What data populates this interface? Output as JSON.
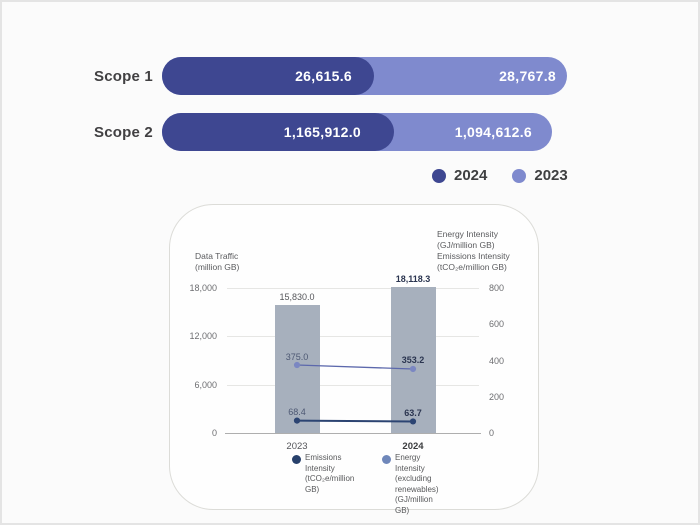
{
  "scope_chart": {
    "rows": [
      {
        "label": "Scope 1",
        "value_2024": "26,615.6",
        "value_2023": "28,767.8"
      },
      {
        "label": "Scope 2",
        "value_2024": "1,165,912.0",
        "value_2023": "1,094,612.6"
      }
    ],
    "legend": [
      {
        "label": "2024",
        "color": "#3e4791"
      },
      {
        "label": "2023",
        "color": "#7f8ace"
      }
    ],
    "colors": {
      "year_2024": "#3e4791",
      "year_2023": "#7f8ace"
    }
  },
  "chart_data": {
    "type": "bar",
    "subtype": "bar+line combo, dual axis",
    "categories": [
      "2023",
      "2024"
    ],
    "series": [
      {
        "name": "Data Traffic",
        "type": "bar",
        "axis": "left",
        "values": [
          15830.0,
          18118.3
        ],
        "labels": [
          "15,830.0",
          "18,118.3"
        ],
        "color": "#a7b0bd"
      },
      {
        "name": "Energy Intensity (excluding renewables) (GJ/million GB)",
        "type": "line",
        "axis": "right",
        "values": [
          375.0,
          353.2
        ],
        "labels": [
          "375.0",
          "353.2"
        ],
        "color": "#5c68ac",
        "dot_color": "#7b87c2"
      },
      {
        "name": "Emissions Intensity (tCO₂e/million GB)",
        "type": "line",
        "axis": "right",
        "values": [
          68.4,
          63.7
        ],
        "labels": [
          "68.4",
          "63.7"
        ],
        "color": "#2c4472",
        "dot_color": "#2c4472"
      }
    ],
    "left_axis": {
      "title": "Data Traffic\n(million GB)",
      "max": 18000,
      "min": 0,
      "ticks": [
        {
          "label": "18,000",
          "value": 18000
        },
        {
          "label": "12,000",
          "value": 12000
        },
        {
          "label": "6,000",
          "value": 6000
        },
        {
          "label": "0",
          "value": 0
        }
      ]
    },
    "right_axis": {
      "title": "Energy Intensity\n(GJ/million GB)\nEmissions Intensity\n(tCO₂e/million GB)",
      "max": 800,
      "min": 0,
      "ticks": [
        {
          "label": "800",
          "value": 800
        },
        {
          "label": "600",
          "value": 600
        },
        {
          "label": "400",
          "value": 400
        },
        {
          "label": "200",
          "value": 200
        },
        {
          "label": "0",
          "value": 0
        }
      ]
    },
    "legend": [
      {
        "label": "Emissions Intensity\n(tCO₂e/million GB)",
        "color": "#27406b"
      },
      {
        "label": "Energy Intensity (excluding\nrenewables) (GJ/million GB)",
        "color": "#6f87ba"
      }
    ],
    "grid": true,
    "legend_position": "bottom"
  }
}
